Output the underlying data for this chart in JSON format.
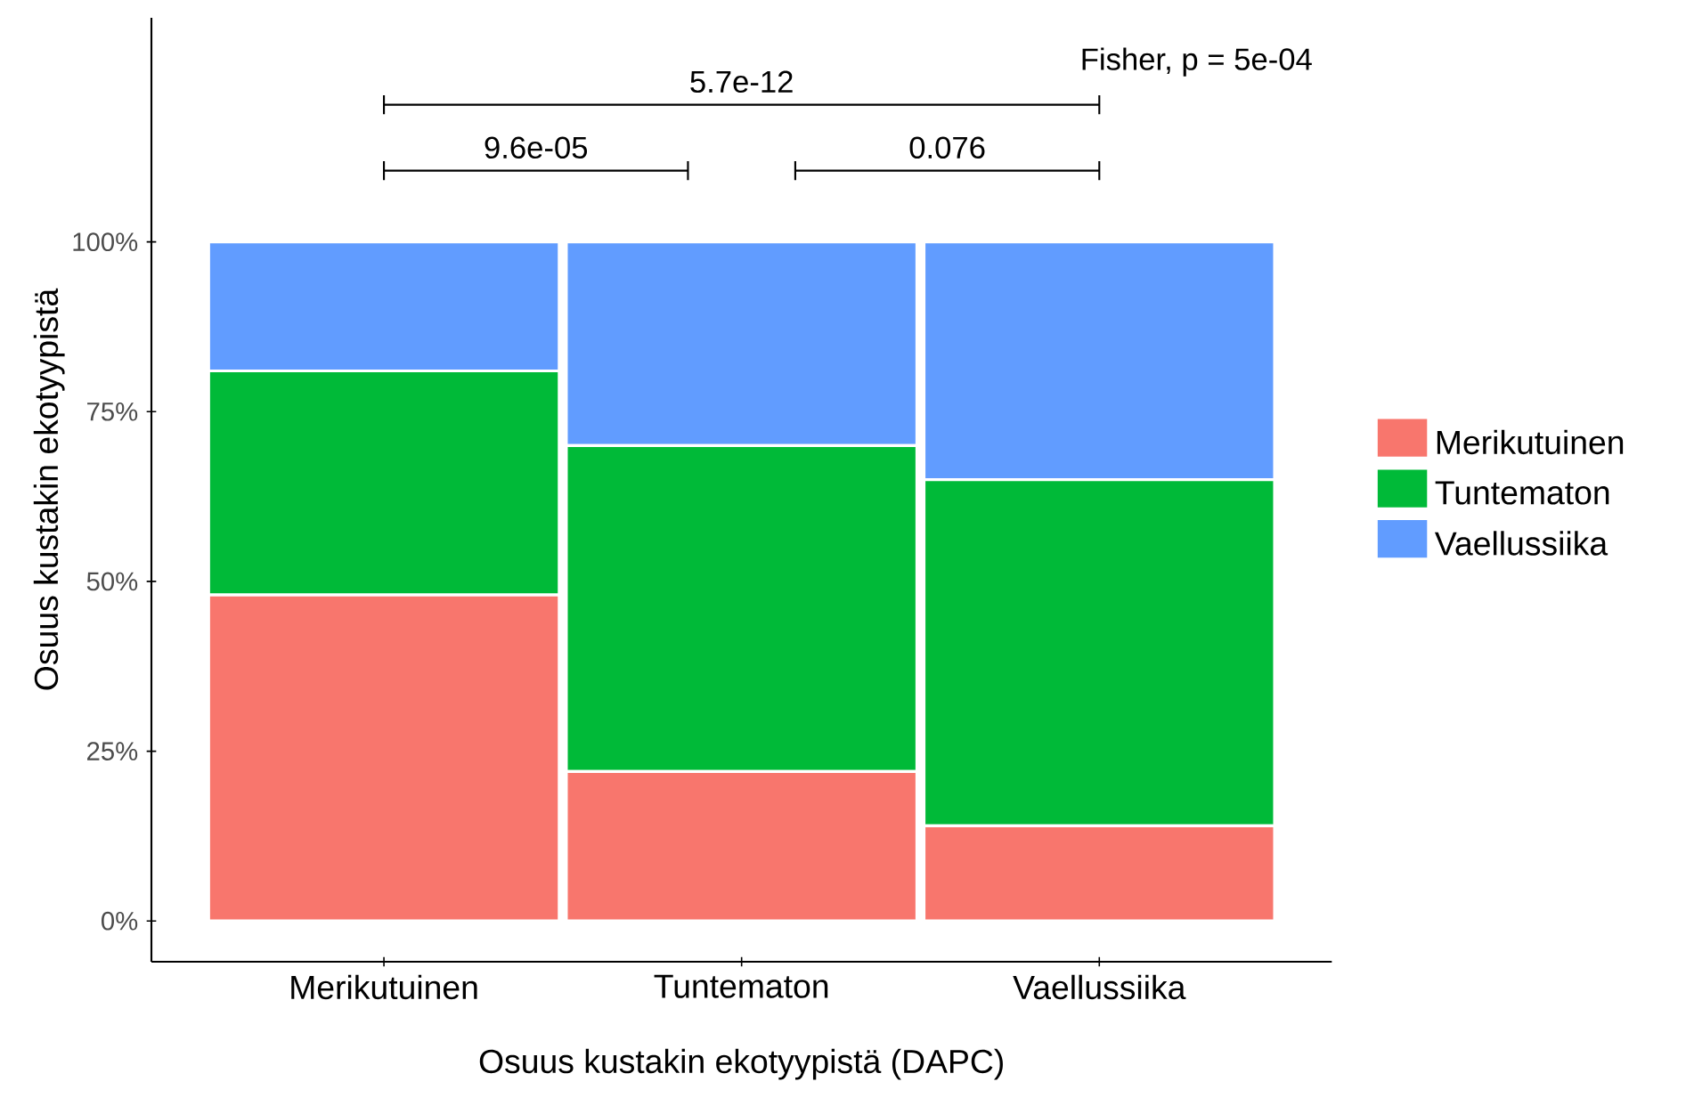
{
  "chart_data": {
    "type": "bar",
    "stacked": true,
    "categories": [
      "Merikutuinen",
      "Tuntematon",
      "Vaellussiika"
    ],
    "series": [
      {
        "name": "Merikutuinen",
        "color": "#f8766d",
        "values": [
          48,
          22,
          14
        ]
      },
      {
        "name": "Tuntematon",
        "color": "#00ba38",
        "values": [
          33,
          48,
          51
        ]
      },
      {
        "name": "Vaellussiika",
        "color": "#619cff",
        "values": [
          19,
          30,
          35
        ]
      }
    ],
    "ylim": [
      -6,
      133
    ],
    "yticks": [
      {
        "value": 0,
        "label": "0%"
      },
      {
        "value": 25,
        "label": "25%"
      },
      {
        "value": 50,
        "label": "50%"
      },
      {
        "value": 75,
        "label": "75%"
      },
      {
        "value": 100,
        "label": "100%"
      }
    ],
    "xlabel": "Osuus kustakin ekotyypistä (DAPC)",
    "ylabel": "Osuus kustakin ekotyypistä",
    "legend": "right",
    "annotations": [
      "9.6e-05",
      "0.076",
      "5.7e-12",
      "Fisher, p =  5e-04"
    ]
  }
}
